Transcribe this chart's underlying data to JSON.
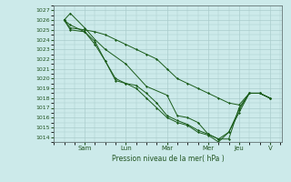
{
  "xlabel": "Pression niveau de la mer( hPa )",
  "bg_color": "#cceaea",
  "grid_color": "#aacccc",
  "line_color": "#1a5c1a",
  "ylim": [
    1013.5,
    1027.5
  ],
  "yticks": [
    1014,
    1015,
    1016,
    1017,
    1018,
    1019,
    1020,
    1021,
    1022,
    1023,
    1024,
    1025,
    1026,
    1027
  ],
  "day_labels": [
    "Sam",
    "Lun",
    "Mar",
    "Mer",
    "Jeu",
    "V"
  ],
  "day_x_positions": [
    1.0,
    3.0,
    5.0,
    7.0,
    8.5,
    10.0
  ],
  "xlim": [
    -0.1,
    10.6
  ],
  "series": [
    {
      "x": [
        0,
        0.3,
        1.0,
        1.5,
        2.0,
        3.0,
        4.0,
        5.0,
        5.5,
        6.0,
        6.5,
        7.0,
        7.5,
        8.0,
        8.5,
        9.0,
        9.5,
        10.0
      ],
      "y": [
        1026.0,
        1026.7,
        1025.2,
        1024.0,
        1023.0,
        1021.5,
        1019.2,
        1018.3,
        1016.2,
        1016.0,
        1015.5,
        1014.3,
        1013.8,
        1013.8,
        1017.0,
        1018.5,
        1018.5,
        1018.0
      ]
    },
    {
      "x": [
        0,
        0.3,
        1.0,
        1.5,
        2.0,
        2.5,
        3.0,
        3.5,
        4.0,
        4.5,
        5.0,
        5.5,
        6.0,
        6.5,
        7.0,
        7.5,
        8.0,
        8.5,
        9.0,
        9.5,
        10.0
      ],
      "y": [
        1026.0,
        1025.5,
        1024.8,
        1023.5,
        1021.8,
        1020.0,
        1019.5,
        1019.3,
        1018.5,
        1017.5,
        1016.2,
        1015.7,
        1015.3,
        1014.7,
        1014.3,
        1013.8,
        1014.5,
        1016.8,
        1018.5,
        1018.5,
        1018.0
      ]
    },
    {
      "x": [
        0,
        0.3,
        1.0,
        1.5,
        2.0,
        2.5,
        3.0,
        3.5,
        4.0,
        4.5,
        5.0,
        5.5,
        6.0,
        6.5,
        7.0,
        7.5,
        8.0,
        8.5,
        9.0,
        9.5,
        10.0
      ],
      "y": [
        1026.0,
        1025.2,
        1025.0,
        1024.8,
        1024.5,
        1024.0,
        1023.5,
        1023.0,
        1022.5,
        1022.0,
        1021.0,
        1020.0,
        1019.5,
        1019.0,
        1018.5,
        1018.0,
        1017.5,
        1017.3,
        1018.5,
        1018.5,
        1018.0
      ]
    },
    {
      "x": [
        0,
        0.3,
        1.0,
        1.5,
        2.0,
        2.5,
        3.0,
        3.5,
        4.0,
        4.5,
        5.0,
        5.5,
        6.0,
        6.5,
        7.0,
        7.5,
        8.0,
        8.5,
        9.0,
        9.5,
        10.0
      ],
      "y": [
        1026.0,
        1025.0,
        1024.8,
        1023.8,
        1021.8,
        1019.8,
        1019.5,
        1019.0,
        1018.0,
        1017.0,
        1016.0,
        1015.5,
        1015.2,
        1014.5,
        1014.2,
        1013.5,
        1014.5,
        1016.5,
        1018.5,
        1018.5,
        1018.0
      ]
    }
  ]
}
